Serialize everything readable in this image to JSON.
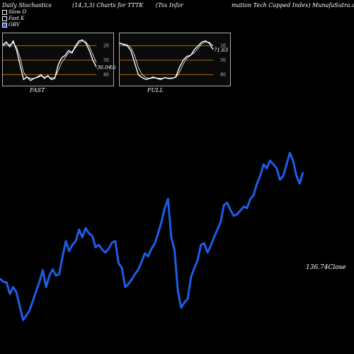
{
  "header": {
    "left": "Daily Stochastics",
    "params": "(14,3,3) Charts for TTTK",
    "name_part1": "(Tsx Infor",
    "name_part2": "mation  Tech Capped Index) MunafaSutra.com"
  },
  "legend": {
    "items": [
      {
        "label": "Slow  D",
        "color": "#000000"
      },
      {
        "label": "Fast K",
        "color": "#000000"
      },
      {
        "label": "OBV",
        "color": "#1e5ce6"
      }
    ]
  },
  "panels": [
    {
      "label": "FAST",
      "value_label": "36.04",
      "level_label": "50",
      "ticks": [
        "80",
        "50",
        "20"
      ]
    },
    {
      "label": "FULL",
      "value_label": "71.63",
      "level_label": "",
      "ticks": [
        "80",
        "50",
        "20"
      ]
    }
  ],
  "price": {
    "close_label": "136.74Close"
  },
  "colors": {
    "obv": "#1e5ce6",
    "price": "#ffffff",
    "band": "#b06a10",
    "bg": "#000000"
  },
  "chart_data": [
    {
      "type": "line",
      "title": "FAST",
      "ylim": [
        0,
        100
      ],
      "ticks": [
        20,
        50,
        80
      ],
      "series": [
        {
          "name": "Fast K",
          "values": [
            82,
            88,
            78,
            90,
            70,
            40,
            10,
            15,
            8,
            12,
            15,
            20,
            12,
            18,
            10,
            12,
            40,
            55,
            60,
            70,
            65,
            80,
            90,
            92,
            85,
            70,
            50,
            36
          ]
        },
        {
          "name": "Slow  D",
          "values": [
            80,
            84,
            82,
            86,
            76,
            55,
            25,
            15,
            12,
            12,
            14,
            17,
            15,
            16,
            13,
            14,
            28,
            45,
            55,
            65,
            68,
            76,
            86,
            90,
            88,
            78,
            62,
            45
          ]
        }
      ]
    },
    {
      "type": "line",
      "title": "FULL",
      "ylim": [
        0,
        100
      ],
      "ticks": [
        20,
        50,
        80
      ],
      "series": [
        {
          "name": "Fast K",
          "values": [
            86,
            82,
            80,
            70,
            45,
            20,
            14,
            10,
            12,
            15,
            12,
            10,
            14,
            12,
            12,
            15,
            35,
            50,
            58,
            60,
            72,
            80,
            88,
            90,
            85,
            72
          ]
        },
        {
          "name": "Slow  D",
          "values": [
            84,
            84,
            82,
            76,
            60,
            35,
            20,
            14,
            12,
            13,
            13,
            12,
            13,
            13,
            13,
            14,
            25,
            42,
            54,
            60,
            66,
            75,
            84,
            88,
            87,
            80
          ]
        }
      ]
    },
    {
      "type": "line",
      "series": [
        {
          "name": "OBV",
          "values": [
            66,
            62,
            61,
            46,
            55,
            48,
            30,
            12,
            18,
            25,
            37,
            50,
            62,
            77,
            55,
            70,
            78,
            70,
            72,
            95,
            115,
            102,
            110,
            115,
            130,
            120,
            132,
            125,
            122,
            107,
            110,
            104,
            100,
            105,
            113,
            115,
            86,
            80,
            55,
            59,
            65,
            72,
            78,
            88,
            99,
            95,
            105,
            112,
            125,
            140,
            158,
            170,
            120,
            103,
            50,
            28,
            35,
            40,
            68,
            80,
            90,
            110,
            112,
            100,
            109,
            120,
            130,
            140,
            162,
            165,
            155,
            148,
            150,
            155,
            160,
            158,
            170,
            175,
            190,
            200,
            215,
            210,
            220,
            215,
            210,
            195,
            200,
            215,
            230,
            220,
            200,
            190,
            205
          ]
        }
      ]
    }
  ]
}
